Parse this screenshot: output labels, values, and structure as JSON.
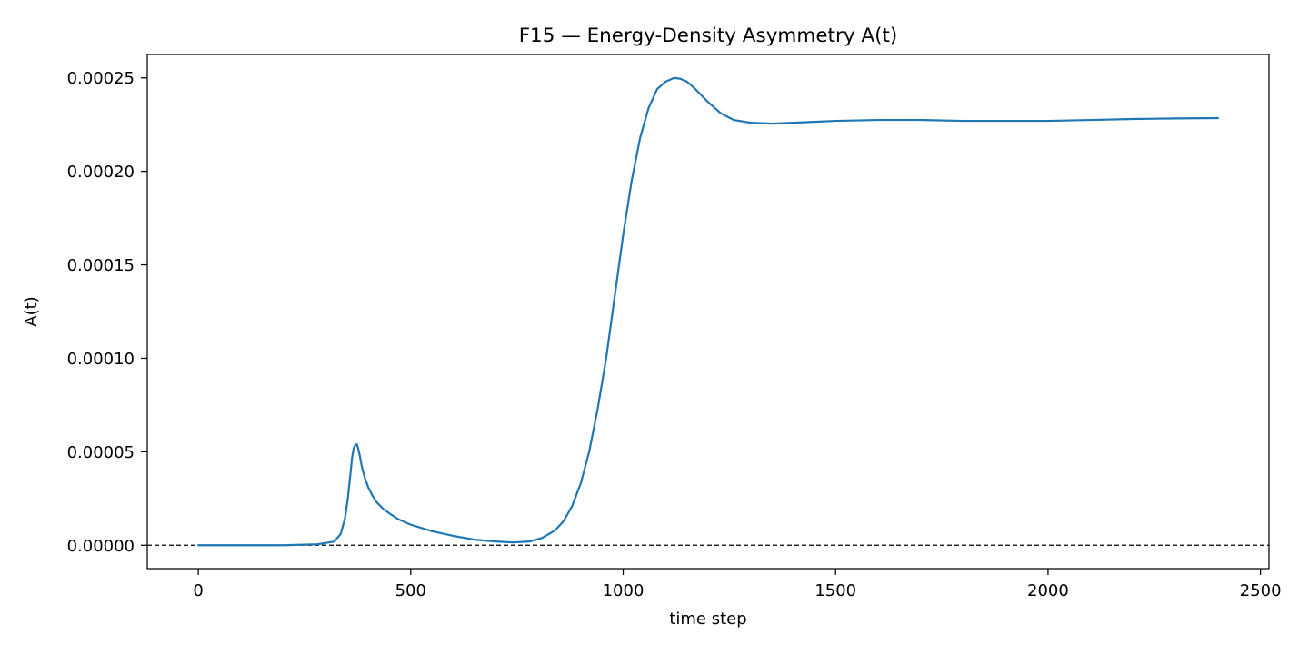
{
  "chart_data": {
    "type": "line",
    "title": "F15 — Energy-Density Asymmetry A(t)",
    "xlabel": "time step",
    "ylabel": "A(t)",
    "xlim": [
      -120,
      2520
    ],
    "ylim": [
      -1.25e-05,
      0.0002625
    ],
    "xticks": [
      0,
      500,
      1000,
      1500,
      2000,
      2500
    ],
    "xtick_labels": [
      "0",
      "500",
      "1000",
      "1500",
      "2000",
      "2500"
    ],
    "yticks": [
      0,
      5e-05,
      0.0001,
      0.00015,
      0.0002,
      0.00025
    ],
    "ytick_labels": [
      "0.00000",
      "0.00005",
      "0.00010",
      "0.00015",
      "0.00020",
      "0.00025"
    ],
    "grid": false,
    "colors": {
      "series": "#1f77b4",
      "reference": "#000000"
    },
    "reference_line": {
      "y": 0,
      "style": "dashed"
    },
    "series": [
      {
        "x": [
          0,
          100,
          200,
          280,
          320,
          335,
          345,
          352,
          358,
          362,
          366,
          370,
          373,
          376,
          380,
          385,
          392,
          400,
          410,
          420,
          435,
          450,
          470,
          500,
          550,
          600,
          650,
          700,
          740,
          780,
          810,
          840,
          860,
          880,
          900,
          920,
          940,
          960,
          980,
          1000,
          1020,
          1040,
          1060,
          1080,
          1100,
          1120,
          1135,
          1150,
          1170,
          1200,
          1230,
          1260,
          1300,
          1350,
          1400,
          1450,
          1500,
          1600,
          1700,
          1800,
          1900,
          2000,
          2100,
          2200,
          2300,
          2400
        ],
        "y": [
          0,
          0,
          0,
          5e-07,
          2e-06,
          6e-06,
          1.4e-05,
          2.5e-05,
          3.8e-05,
          4.7e-05,
          5.2e-05,
          5.38e-05,
          5.4e-05,
          5.2e-05,
          4.8e-05,
          4.2e-05,
          3.6e-05,
          3.1e-05,
          2.65e-05,
          2.3e-05,
          1.95e-05,
          1.7e-05,
          1.4e-05,
          1.1e-05,
          7.5e-06,
          5e-06,
          3e-06,
          2e-06,
          1.5e-06,
          2e-06,
          4e-06,
          8e-06,
          1.3e-05,
          2.1e-05,
          3.3e-05,
          5e-05,
          7.3e-05,
          0.0001,
          0.000133,
          0.000166,
          0.000195,
          0.000218,
          0.000234,
          0.000244,
          0.000248,
          0.00025,
          0.0002495,
          0.000248,
          0.000244,
          0.000237,
          0.000231,
          0.0002275,
          0.000226,
          0.0002255,
          0.000226,
          0.0002265,
          0.000227,
          0.0002275,
          0.0002275,
          0.000227,
          0.000227,
          0.000227,
          0.0002275,
          0.000228,
          0.0002283,
          0.0002285
        ]
      }
    ]
  }
}
